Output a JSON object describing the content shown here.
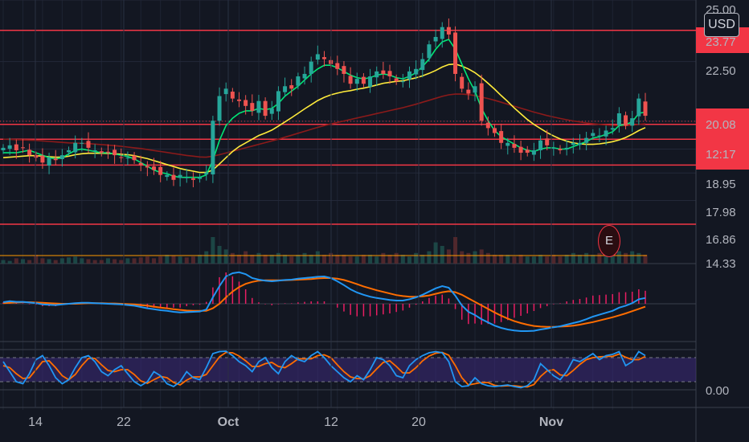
{
  "currency": "USD",
  "earnings_marker": "E",
  "colors": {
    "background": "#131722",
    "up": "#26a69a",
    "down": "#ef5350",
    "hline": "#f23645",
    "ma_fast": "#00e676",
    "ma_mid": "#ffeb3b",
    "ma_slow": "#8b1a1a",
    "macd": "#2196f3",
    "signal": "#ff6d00",
    "hist": "#e91e63",
    "stoch_k": "#2196f3",
    "stoch_d": "#ff6d00",
    "stoch_band": "#3c2a7a"
  },
  "price_axis": {
    "ticks": [
      "25.00",
      "23.77",
      "22.50",
      "20.08",
      "12:17",
      "18.95",
      "17.98",
      "16.86",
      "14.33"
    ],
    "current_price": "20.08",
    "countdown": "12:17"
  },
  "stoch_axis": {
    "ticks": [
      "0.00"
    ]
  },
  "date_axis": [
    "14",
    "22",
    "Oct",
    "12",
    "20",
    "Nov"
  ],
  "chart_data": {
    "type": "candlestick",
    "ylim": [
      14.3,
      25.0
    ],
    "grid": true,
    "horizontal_levels": [
      23.77,
      19.95,
      19.35,
      18.3,
      15.9
    ],
    "current_price": 20.08,
    "closes": [
      19.0,
      19.1,
      18.9,
      19.0,
      18.7,
      18.6,
      18.4,
      18.6,
      18.5,
      18.7,
      18.9,
      19.2,
      19.2,
      19.0,
      18.9,
      18.8,
      18.8,
      18.7,
      18.6,
      18.6,
      18.5,
      18.3,
      18.2,
      18.1,
      17.9,
      17.9,
      17.7,
      17.9,
      17.8,
      17.7,
      17.8,
      18.0,
      20.1,
      21.1,
      21.4,
      21.0,
      20.9,
      20.7,
      20.5,
      20.9,
      20.3,
      20.6,
      21.3,
      21.5,
      21.4,
      21.9,
      22.0,
      22.5,
      22.8,
      22.6,
      22.4,
      22.2,
      22.0,
      21.6,
      21.8,
      21.6,
      21.9,
      22.1,
      22.0,
      21.9,
      21.7,
      21.7,
      22.1,
      22.2,
      22.6,
      23.2,
      23.5,
      23.9,
      23.6,
      22.0,
      21.4,
      21.2,
      21.5,
      20.1,
      19.8,
      19.6,
      19.2,
      19.2,
      19.0,
      18.8,
      18.8,
      18.9,
      19.3,
      19.1,
      19.0,
      18.9,
      19.0,
      19.2,
      19.2,
      19.4,
      19.6,
      19.5,
      19.7,
      19.8,
      20.4,
      19.9,
      20.2,
      21.0,
      20.3
    ],
    "ma_fast": [
      18.8,
      18.8,
      18.8,
      18.85,
      18.9,
      18.8,
      18.7,
      18.6,
      18.55,
      18.6,
      18.75,
      18.9,
      18.95,
      18.9,
      18.85,
      18.8,
      18.8,
      18.75,
      18.7,
      18.65,
      18.55,
      18.4,
      18.25,
      18.1,
      18.0,
      17.95,
      17.85,
      17.8,
      17.8,
      17.8,
      17.8,
      17.9,
      18.5,
      19.3,
      19.9,
      20.2,
      20.4,
      20.5,
      20.5,
      20.6,
      20.55,
      20.6,
      20.8,
      21.1,
      21.3,
      21.5,
      21.75,
      22.0,
      22.2,
      22.35,
      22.35,
      22.25,
      22.1,
      21.95,
      21.85,
      21.8,
      21.85,
      21.95,
      22.0,
      21.95,
      21.85,
      21.8,
      21.9,
      22.05,
      22.3,
      22.6,
      23.0,
      23.3,
      23.4,
      23.0,
      22.4,
      21.8,
      21.3,
      20.6,
      20.1,
      19.7,
      19.45,
      19.3,
      19.15,
      19.0,
      18.9,
      18.85,
      18.95,
      19.0,
      19.0,
      18.95,
      18.95,
      19.05,
      19.15,
      19.25,
      19.4,
      19.45,
      19.55,
      19.65,
      19.9,
      19.95,
      20.05,
      20.4,
      20.45
    ],
    "ma_mid": [
      18.6,
      18.62,
      18.64,
      18.66,
      18.68,
      18.68,
      18.66,
      18.64,
      18.62,
      18.62,
      18.66,
      18.72,
      18.76,
      18.78,
      18.78,
      18.78,
      18.77,
      18.76,
      18.74,
      18.72,
      18.68,
      18.62,
      18.56,
      18.48,
      18.4,
      18.32,
      18.24,
      18.16,
      18.1,
      18.05,
      18.0,
      18.0,
      18.1,
      18.35,
      18.6,
      18.85,
      19.05,
      19.2,
      19.35,
      19.5,
      19.6,
      19.72,
      19.88,
      20.05,
      20.22,
      20.4,
      20.58,
      20.75,
      20.92,
      21.05,
      21.15,
      21.22,
      21.28,
      21.32,
      21.38,
      21.42,
      21.48,
      21.55,
      21.62,
      21.66,
      21.7,
      21.72,
      21.78,
      21.84,
      21.92,
      22.02,
      22.14,
      22.28,
      22.38,
      22.4,
      22.32,
      22.2,
      22.05,
      21.85,
      21.62,
      21.38,
      21.12,
      20.88,
      20.62,
      20.38,
      20.15,
      19.95,
      19.78,
      19.62,
      19.48,
      19.36,
      19.27,
      19.2,
      19.16,
      19.14,
      19.14,
      19.16,
      19.2,
      19.25,
      19.32,
      19.42,
      19.55,
      19.7,
      19.82
    ],
    "ma_slow": [
      19.35,
      19.34,
      19.33,
      19.32,
      19.31,
      19.3,
      19.28,
      19.26,
      19.24,
      19.22,
      19.2,
      19.19,
      19.18,
      19.17,
      19.15,
      19.13,
      19.11,
      19.09,
      19.06,
      19.03,
      19.0,
      18.97,
      18.93,
      18.89,
      18.85,
      18.81,
      18.77,
      18.73,
      18.69,
      18.66,
      18.63,
      18.62,
      18.66,
      18.72,
      18.79,
      18.86,
      18.93,
      19.0,
      19.07,
      19.14,
      19.21,
      19.28,
      19.35,
      19.43,
      19.51,
      19.59,
      19.67,
      19.75,
      19.83,
      19.9,
      19.97,
      20.03,
      20.09,
      20.15,
      20.21,
      20.27,
      20.33,
      20.39,
      20.45,
      20.51,
      20.57,
      20.63,
      20.7,
      20.77,
      20.85,
      20.93,
      21.01,
      21.09,
      21.15,
      21.18,
      21.18,
      21.16,
      21.12,
      21.06,
      21.0,
      20.93,
      20.85,
      20.77,
      20.69,
      20.61,
      20.53,
      20.45,
      20.38,
      20.31,
      20.25,
      20.19,
      20.14,
      20.09,
      20.05,
      20.01,
      19.98,
      19.95,
      19.93,
      19.91,
      19.9,
      19.9,
      19.92,
      19.95,
      19.98
    ],
    "macd": [
      0.05,
      0.08,
      0.06,
      0.06,
      0.04,
      0.02,
      -0.02,
      -0.03,
      -0.04,
      -0.02,
      0.0,
      0.02,
      0.03,
      0.03,
      0.02,
      0.01,
      0.0,
      -0.01,
      -0.02,
      -0.04,
      -0.06,
      -0.1,
      -0.14,
      -0.17,
      -0.2,
      -0.22,
      -0.25,
      -0.27,
      -0.26,
      -0.25,
      -0.24,
      -0.18,
      0.2,
      0.55,
      0.85,
      0.95,
      0.98,
      0.92,
      0.8,
      0.75,
      0.72,
      0.7,
      0.72,
      0.74,
      0.75,
      0.78,
      0.8,
      0.82,
      0.84,
      0.85,
      0.8,
      0.7,
      0.58,
      0.45,
      0.35,
      0.28,
      0.22,
      0.18,
      0.15,
      0.12,
      0.1,
      0.1,
      0.14,
      0.2,
      0.28,
      0.38,
      0.48,
      0.55,
      0.5,
      0.25,
      -0.05,
      -0.25,
      -0.35,
      -0.48,
      -0.58,
      -0.68,
      -0.75,
      -0.8,
      -0.83,
      -0.85,
      -0.85,
      -0.84,
      -0.8,
      -0.77,
      -0.73,
      -0.7,
      -0.65,
      -0.6,
      -0.55,
      -0.48,
      -0.4,
      -0.34,
      -0.28,
      -0.22,
      -0.12,
      -0.06,
      0.02,
      0.14,
      0.18
    ],
    "signal": [
      0.02,
      0.03,
      0.04,
      0.05,
      0.05,
      0.04,
      0.03,
      0.02,
      0.01,
      0.0,
      0.0,
      0.0,
      0.01,
      0.02,
      0.02,
      0.02,
      0.01,
      0.01,
      0.0,
      -0.01,
      -0.02,
      -0.04,
      -0.06,
      -0.09,
      -0.12,
      -0.14,
      -0.17,
      -0.19,
      -0.21,
      -0.22,
      -0.22,
      -0.22,
      -0.14,
      0.0,
      0.2,
      0.38,
      0.52,
      0.62,
      0.68,
      0.72,
      0.73,
      0.73,
      0.73,
      0.73,
      0.74,
      0.75,
      0.76,
      0.77,
      0.79,
      0.8,
      0.8,
      0.78,
      0.74,
      0.68,
      0.61,
      0.54,
      0.48,
      0.42,
      0.37,
      0.32,
      0.27,
      0.24,
      0.22,
      0.22,
      0.23,
      0.26,
      0.31,
      0.36,
      0.39,
      0.36,
      0.28,
      0.17,
      0.06,
      -0.05,
      -0.16,
      -0.27,
      -0.37,
      -0.46,
      -0.54,
      -0.6,
      -0.65,
      -0.69,
      -0.71,
      -0.72,
      -0.72,
      -0.71,
      -0.7,
      -0.68,
      -0.65,
      -0.61,
      -0.57,
      -0.52,
      -0.47,
      -0.42,
      -0.36,
      -0.3,
      -0.23,
      -0.16,
      -0.09
    ],
    "stoch_k": [
      70,
      45,
      20,
      15,
      40,
      75,
      85,
      60,
      30,
      15,
      25,
      55,
      80,
      85,
      70,
      45,
      35,
      50,
      60,
      40,
      20,
      10,
      20,
      45,
      35,
      15,
      8,
      20,
      45,
      30,
      25,
      55,
      90,
      95,
      96,
      85,
      70,
      60,
      45,
      70,
      80,
      55,
      40,
      70,
      85,
      75,
      70,
      85,
      95,
      80,
      60,
      45,
      30,
      20,
      35,
      25,
      50,
      80,
      75,
      60,
      35,
      30,
      60,
      75,
      85,
      92,
      95,
      92,
      70,
      20,
      8,
      10,
      30,
      15,
      10,
      8,
      10,
      12,
      8,
      5,
      10,
      25,
      65,
      50,
      35,
      25,
      45,
      75,
      70,
      80,
      90,
      75,
      85,
      88,
      95,
      60,
      70,
      95,
      85
    ],
    "stoch_d": [
      60,
      55,
      40,
      28,
      30,
      50,
      70,
      72,
      55,
      35,
      25,
      38,
      60,
      78,
      78,
      62,
      48,
      45,
      50,
      50,
      38,
      22,
      16,
      25,
      33,
      30,
      18,
      12,
      24,
      32,
      32,
      38,
      60,
      82,
      93,
      92,
      84,
      72,
      58,
      58,
      65,
      68,
      58,
      55,
      65,
      77,
      77,
      77,
      85,
      87,
      80,
      62,
      45,
      32,
      28,
      27,
      35,
      52,
      68,
      72,
      58,
      42,
      42,
      55,
      72,
      84,
      91,
      93,
      86,
      60,
      30,
      12,
      15,
      18,
      18,
      11,
      9,
      10,
      10,
      8,
      7,
      13,
      33,
      47,
      50,
      37,
      35,
      48,
      63,
      75,
      80,
      82,
      83,
      83,
      89,
      81,
      75,
      75,
      83
    ],
    "volume": [
      0.2,
      0.15,
      0.3,
      0.25,
      0.2,
      0.5,
      0.3,
      0.25,
      0.2,
      0.3,
      0.35,
      0.4,
      0.3,
      0.25,
      0.2,
      0.2,
      0.3,
      0.25,
      0.2,
      0.3,
      0.3,
      0.35,
      0.4,
      0.3,
      0.4,
      0.5,
      0.45,
      0.4,
      0.35,
      0.4,
      0.5,
      0.7,
      1.5,
      1.0,
      0.8,
      0.6,
      0.5,
      0.7,
      0.5,
      0.6,
      0.5,
      0.5,
      0.6,
      0.5,
      0.4,
      0.5,
      0.6,
      0.5,
      0.7,
      0.5,
      0.6,
      0.5,
      0.5,
      0.4,
      0.4,
      0.5,
      0.5,
      0.4,
      0.6,
      0.5,
      0.6,
      0.5,
      0.4,
      0.6,
      0.5,
      0.7,
      1.2,
      1.0,
      0.8,
      1.5,
      0.7,
      0.6,
      0.7,
      0.8,
      0.6,
      0.5,
      0.5,
      0.5,
      0.4,
      0.5,
      0.4,
      0.4,
      0.5,
      0.4,
      0.5,
      0.4,
      0.5,
      0.6,
      0.5,
      0.6,
      0.5,
      0.6,
      0.5,
      0.6,
      0.7,
      0.6,
      0.7,
      0.6,
      0.5
    ]
  }
}
